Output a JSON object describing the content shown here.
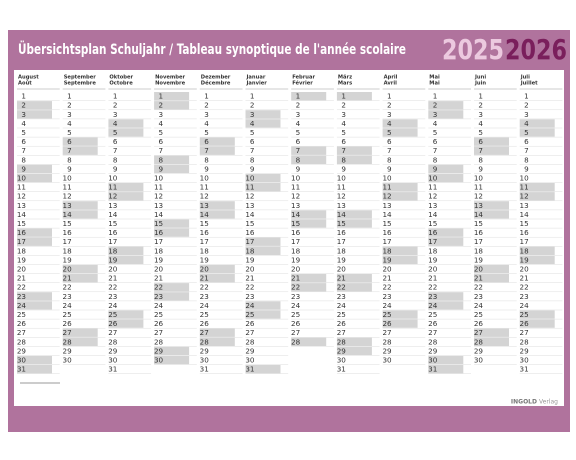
{
  "header": {
    "title": "Übersichtsplan Schuljahr / Tableau synoptique de l'année scolaire",
    "year_start": "2025",
    "year_end": "2026"
  },
  "months": [
    {
      "de": "August",
      "fr": "Août",
      "days": [
        1,
        2,
        3,
        4,
        5,
        6,
        7,
        8,
        9,
        10,
        11,
        12,
        13,
        14,
        15,
        16,
        17,
        18,
        19,
        20,
        21,
        22,
        23,
        24,
        25,
        26,
        27,
        28,
        29,
        30,
        31
      ],
      "shaded": [
        2,
        3,
        9,
        10,
        16,
        17,
        23,
        24,
        30,
        31
      ]
    },
    {
      "de": "September",
      "fr": "Septembre",
      "days": [
        1,
        2,
        3,
        4,
        5,
        6,
        7,
        8,
        9,
        10,
        11,
        12,
        13,
        14,
        15,
        16,
        17,
        18,
        19,
        20,
        21,
        22,
        23,
        24,
        25,
        26,
        27,
        28,
        29,
        30
      ],
      "shaded": [
        6,
        7,
        13,
        14,
        20,
        21,
        27,
        28
      ]
    },
    {
      "de": "Oktober",
      "fr": "Octobre",
      "days": [
        1,
        2,
        3,
        4,
        5,
        6,
        7,
        8,
        9,
        10,
        11,
        12,
        13,
        14,
        15,
        16,
        17,
        18,
        19,
        20,
        21,
        22,
        23,
        24,
        25,
        26,
        27,
        28,
        29,
        30,
        31
      ],
      "shaded": [
        4,
        5,
        11,
        12,
        18,
        19,
        25,
        26
      ]
    },
    {
      "de": "November",
      "fr": "Novembre",
      "days": [
        1,
        2,
        3,
        4,
        5,
        6,
        7,
        8,
        9,
        10,
        11,
        12,
        13,
        14,
        15,
        16,
        17,
        18,
        19,
        20,
        21,
        22,
        23,
        24,
        25,
        26,
        27,
        28,
        29,
        30
      ],
      "shaded": [
        1,
        2,
        8,
        9,
        15,
        16,
        22,
        23,
        29,
        30
      ]
    },
    {
      "de": "Dezember",
      "fr": "Décembre",
      "days": [
        1,
        2,
        3,
        4,
        5,
        6,
        7,
        8,
        9,
        10,
        11,
        12,
        13,
        14,
        15,
        16,
        17,
        18,
        19,
        20,
        21,
        22,
        23,
        24,
        25,
        26,
        27,
        28,
        29,
        30,
        31
      ],
      "shaded": [
        6,
        7,
        13,
        14,
        20,
        21,
        27,
        28
      ]
    },
    {
      "de": "Januar",
      "fr": "Janvier",
      "days": [
        1,
        2,
        3,
        4,
        5,
        6,
        7,
        8,
        9,
        10,
        11,
        12,
        13,
        14,
        15,
        16,
        17,
        18,
        19,
        20,
        21,
        22,
        23,
        24,
        25,
        26,
        27,
        28,
        29,
        30,
        31
      ],
      "shaded": [
        3,
        4,
        10,
        11,
        17,
        18,
        24,
        25,
        31
      ]
    },
    {
      "de": "Februar",
      "fr": "Février",
      "days": [
        1,
        2,
        3,
        4,
        5,
        6,
        7,
        8,
        9,
        10,
        11,
        12,
        13,
        14,
        15,
        16,
        17,
        18,
        19,
        20,
        21,
        22,
        23,
        24,
        25,
        26,
        27,
        28
      ],
      "shaded": [
        1,
        7,
        8,
        14,
        15,
        21,
        22,
        28
      ]
    },
    {
      "de": "März",
      "fr": "Mars",
      "days": [
        1,
        2,
        3,
        4,
        5,
        6,
        7,
        8,
        9,
        10,
        11,
        12,
        13,
        14,
        15,
        16,
        17,
        18,
        19,
        20,
        21,
        22,
        23,
        24,
        25,
        26,
        27,
        28,
        29,
        30,
        31
      ],
      "shaded": [
        1,
        7,
        8,
        14,
        15,
        21,
        22,
        28,
        29
      ]
    },
    {
      "de": "April",
      "fr": "Avril",
      "days": [
        1,
        2,
        3,
        4,
        5,
        6,
        7,
        8,
        9,
        10,
        11,
        12,
        13,
        14,
        15,
        16,
        17,
        18,
        19,
        20,
        21,
        22,
        23,
        24,
        25,
        26,
        27,
        28,
        29,
        30
      ],
      "shaded": [
        4,
        5,
        11,
        12,
        18,
        19,
        25,
        26
      ]
    },
    {
      "de": "Mai",
      "fr": "Mai",
      "days": [
        1,
        2,
        3,
        4,
        5,
        6,
        7,
        8,
        9,
        10,
        11,
        12,
        13,
        14,
        15,
        16,
        17,
        18,
        19,
        20,
        21,
        22,
        23,
        24,
        25,
        26,
        27,
        28,
        29,
        30,
        31
      ],
      "shaded": [
        2,
        3,
        9,
        10,
        16,
        17,
        23,
        24,
        30,
        31
      ]
    },
    {
      "de": "Juni",
      "fr": "Juin",
      "days": [
        1,
        2,
        3,
        4,
        5,
        6,
        7,
        8,
        9,
        10,
        11,
        12,
        13,
        14,
        15,
        16,
        17,
        18,
        19,
        20,
        21,
        22,
        23,
        24,
        25,
        26,
        27,
        28,
        29,
        30
      ],
      "shaded": [
        6,
        7,
        13,
        14,
        20,
        21,
        27,
        28
      ]
    },
    {
      "de": "Juli",
      "fr": "Juillet",
      "days": [
        1,
        2,
        3,
        4,
        5,
        6,
        7,
        8,
        9,
        10,
        11,
        12,
        13,
        14,
        15,
        16,
        17,
        18,
        19,
        20,
        21,
        22,
        23,
        24,
        25,
        26,
        27,
        28,
        29,
        30,
        31
      ],
      "shaded": [
        4,
        5,
        11,
        12,
        18,
        19,
        25,
        26
      ]
    }
  ],
  "footer": {
    "brand": "INGOLD",
    "publisher": "Verlag"
  }
}
